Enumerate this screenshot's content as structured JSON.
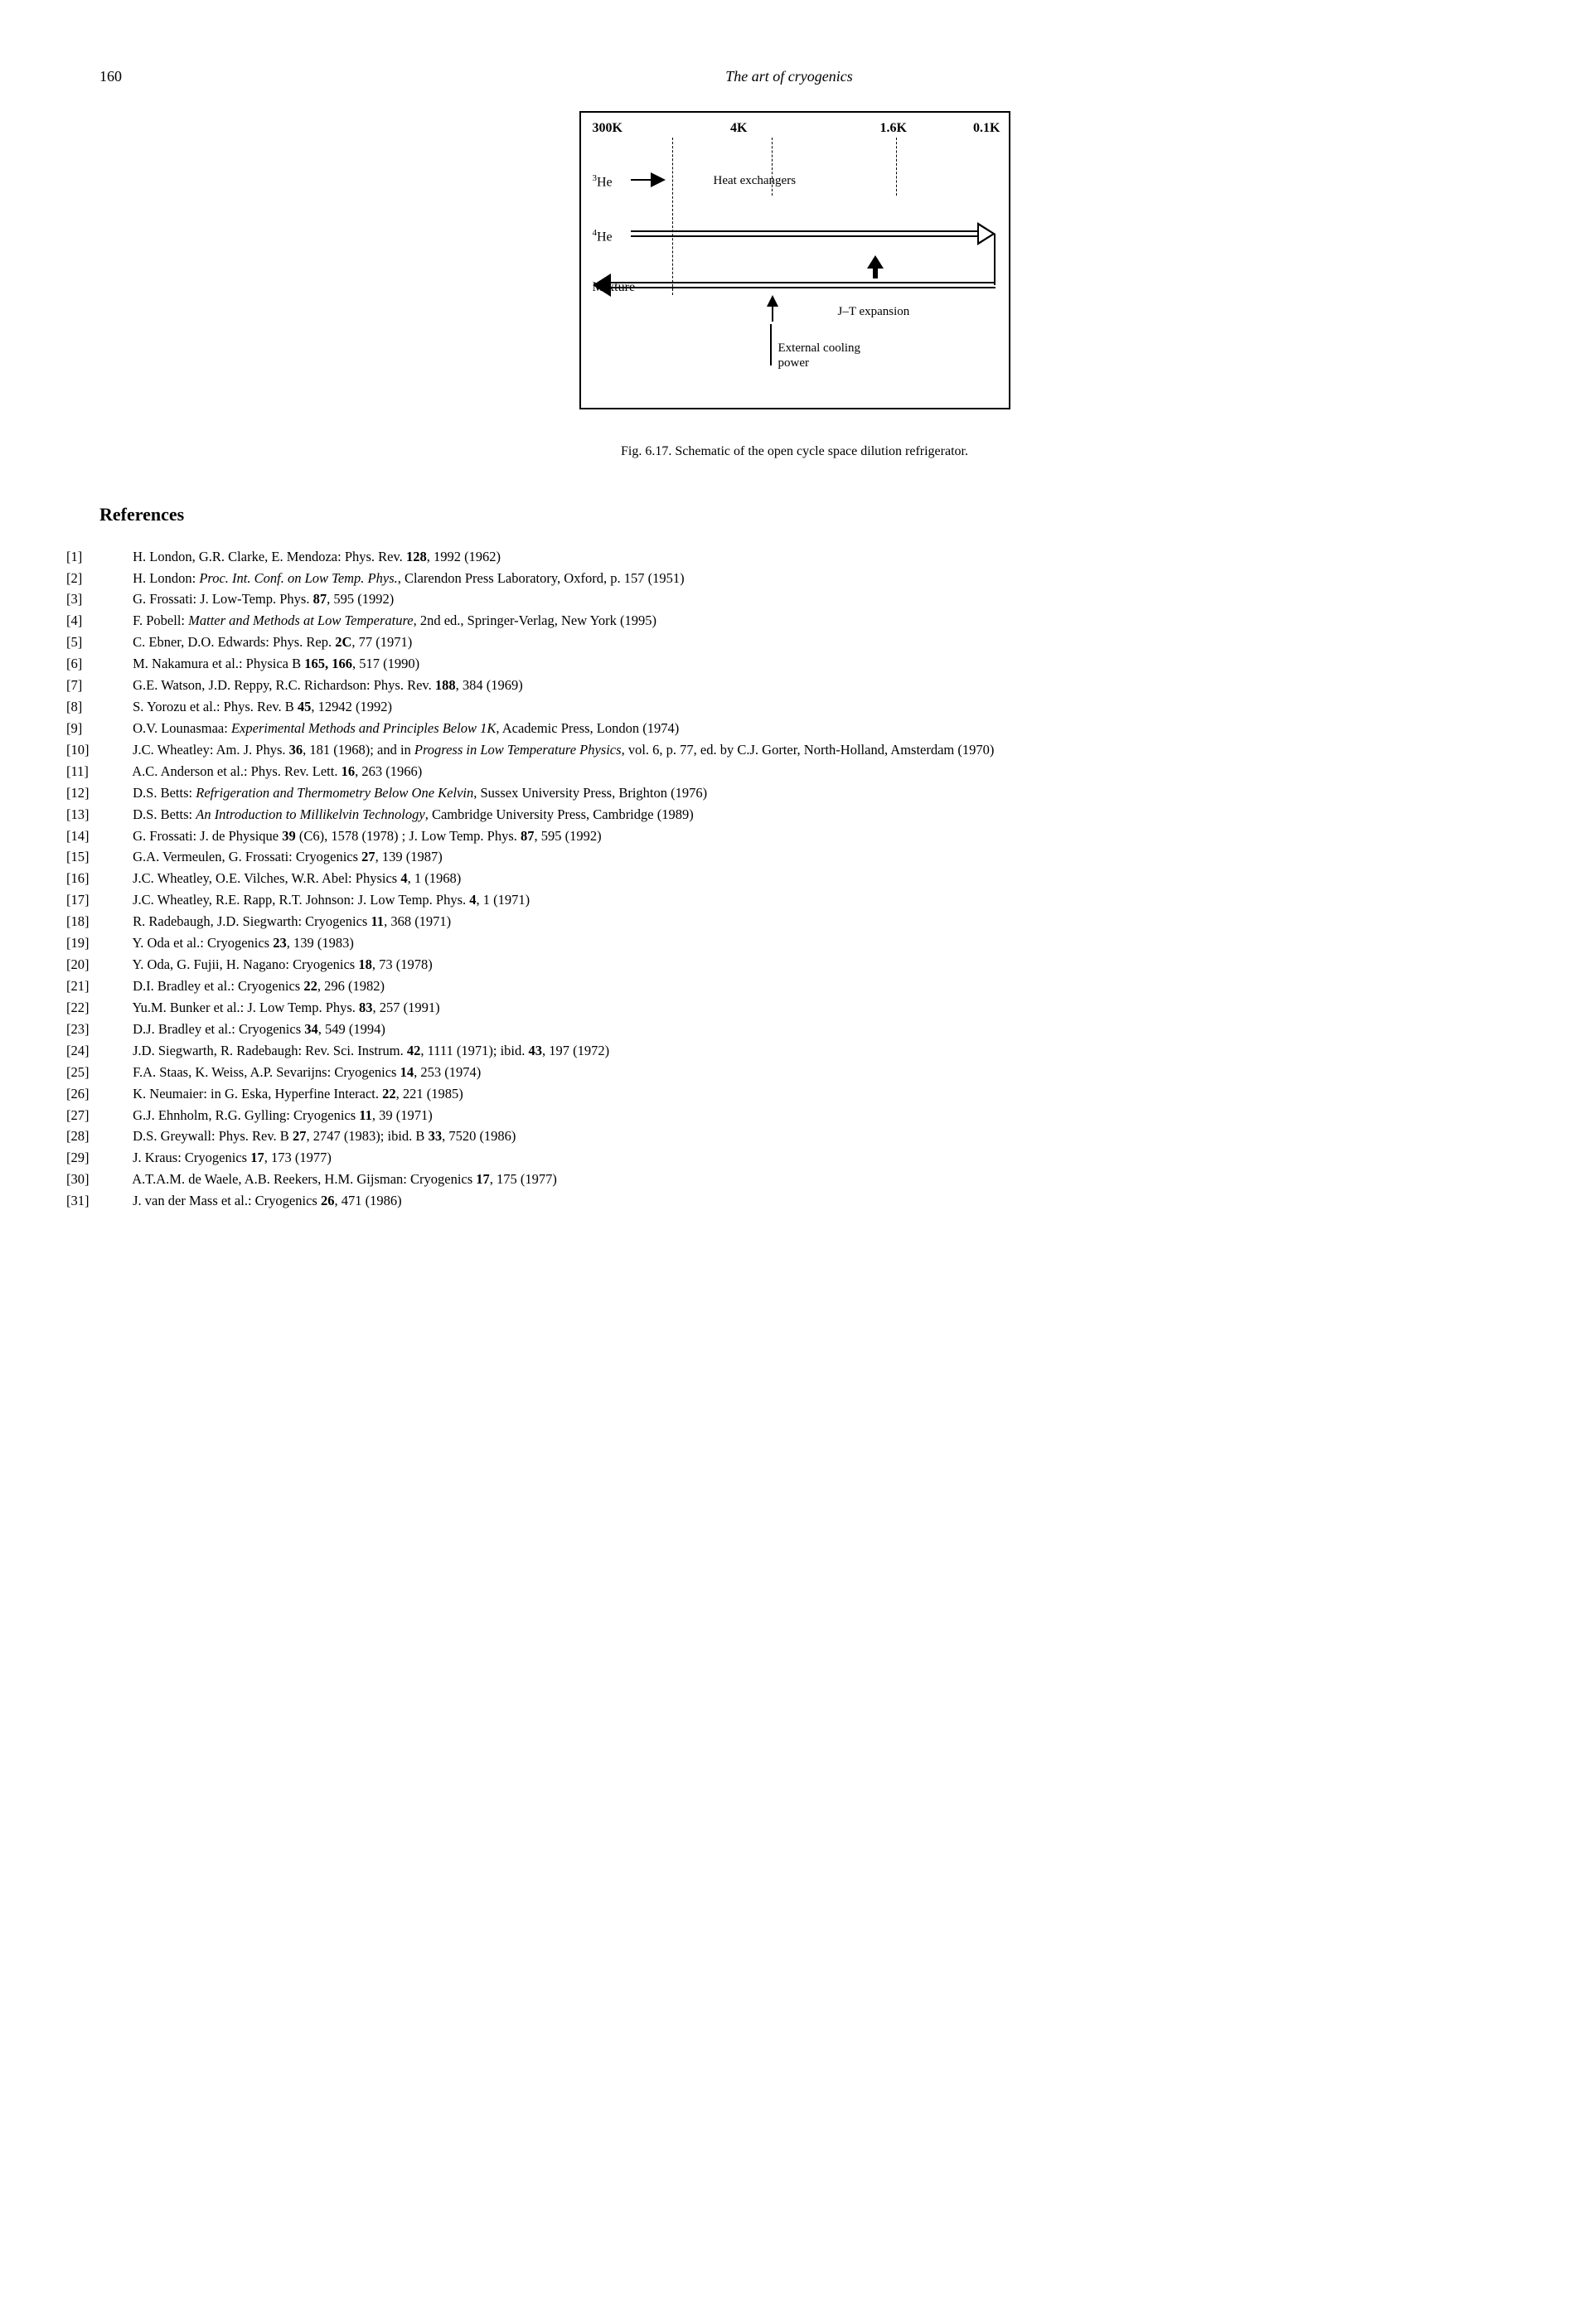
{
  "page_number": "160",
  "running_title": "The art of cryogenics",
  "figure": {
    "temps": [
      "300K",
      "4K",
      "1.6K",
      "0.1K"
    ],
    "rows": [
      "³He",
      "⁴He",
      "Mixture"
    ],
    "labels": {
      "heat_exchangers": "Heat exchangers",
      "jt_expansion": "J–T expansion",
      "external_cooling": "External cooling power"
    },
    "caption": "Fig. 6.17.  Schematic of the open cycle space dilution refrigerator."
  },
  "references_heading": "References",
  "references": [
    {
      "num": "[1]",
      "text": "H. London, G.R. Clarke, E. Mendoza: Phys. Rev. <b>128</b>, 1992 (1962)"
    },
    {
      "num": "[2]",
      "text": "H. London: <i>Proc. Int. Conf. on Low Temp. Phys.</i>, Clarendon Press Laboratory, Oxford, p. 157 (1951)"
    },
    {
      "num": "[3]",
      "text": "G. Frossati: J. Low-Temp. Phys. <b>87</b>, 595 (1992)"
    },
    {
      "num": "[4]",
      "text": "F. Pobell: <i>Matter and Methods at Low Temperature</i>, 2nd ed., Springer-Verlag, New York (1995)"
    },
    {
      "num": "[5]",
      "text": "C. Ebner, D.O. Edwards: Phys. Rep. <b>2C</b>, 77 (1971)"
    },
    {
      "num": "[6]",
      "text": "M. Nakamura et al.: Physica B <b>165, 166</b>, 517 (1990)"
    },
    {
      "num": "[7]",
      "text": "G.E. Watson, J.D. Reppy, R.C. Richardson: Phys. Rev. <b>188</b>, 384 (1969)"
    },
    {
      "num": "[8]",
      "text": "S. Yorozu et al.: Phys. Rev. B <b>45</b>, 12942 (1992)"
    },
    {
      "num": "[9]",
      "text": "O.V. Lounasmaa: <i>Experimental Methods and Principles Below 1K</i>, Academic Press, London (1974)"
    },
    {
      "num": "[10]",
      "text": "J.C. Wheatley: Am. J. Phys. <b>36</b>, 181 (1968); and in <i>Progress in Low Temperature Physics</i>, vol. 6, p. 77, ed. by C.J. Gorter, North-Holland, Amsterdam (1970)"
    },
    {
      "num": "[11]",
      "text": "A.C. Anderson et al.: Phys. Rev. Lett. <b>16</b>, 263 (1966)"
    },
    {
      "num": "[12]",
      "text": "D.S. Betts: <i>Refrigeration and Thermometry Below One Kelvin</i>, Sussex University Press, Brighton (1976)"
    },
    {
      "num": "[13]",
      "text": "D.S. Betts: <i>An Introduction to Millikelvin Technology</i>, Cambridge University Press, Cambridge (1989)"
    },
    {
      "num": "[14]",
      "text": "G. Frossati: J. de Physique <b>39</b> (C6), 1578 (1978) ; J. Low Temp. Phys. <b>87</b>, 595 (1992)"
    },
    {
      "num": "[15]",
      "text": "G.A. Vermeulen, G. Frossati: Cryogenics <b>27</b>, 139 (1987)"
    },
    {
      "num": "[16]",
      "text": "J.C. Wheatley, O.E. Vilches, W.R. Abel: Physics <b>4</b>, 1 (1968)"
    },
    {
      "num": "[17]",
      "text": "J.C. Wheatley, R.E. Rapp, R.T. Johnson: J. Low Temp. Phys. <b>4</b>, 1 (1971)"
    },
    {
      "num": "[18]",
      "text": "R. Radebaugh, J.D. Siegwarth: Cryogenics <b>11</b>, 368 (1971)"
    },
    {
      "num": "[19]",
      "text": "Y. Oda et al.: Cryogenics <b>23</b>, 139 (1983)"
    },
    {
      "num": "[20]",
      "text": "Y. Oda, G. Fujii, H. Nagano: Cryogenics <b>18</b>, 73 (1978)"
    },
    {
      "num": "[21]",
      "text": "D.I. Bradley et al.: Cryogenics <b>22</b>, 296 (1982)"
    },
    {
      "num": "[22]",
      "text": "Yu.M. Bunker et al.: J. Low Temp. Phys. <b>83</b>, 257 (1991)"
    },
    {
      "num": "[23]",
      "text": "D.J. Bradley et al.: Cryogenics <b>34</b>, 549 (1994)"
    },
    {
      "num": "[24]",
      "text": "J.D. Siegwarth, R. Radebaugh: Rev. Sci. Instrum. <b>42</b>, 1111 (1971); ibid. <b>43</b>, 197 (1972)"
    },
    {
      "num": "[25]",
      "text": "F.A. Staas, K. Weiss, A.P. Sevarijns: Cryogenics <b>14</b>, 253 (1974)"
    },
    {
      "num": "[26]",
      "text": "K. Neumaier: in G. Eska, Hyperfine Interact. <b>22</b>, 221 (1985)"
    },
    {
      "num": "[27]",
      "text": "G.J. Ehnholm, R.G. Gylling: Cryogenics <b>11</b>, 39 (1971)"
    },
    {
      "num": "[28]",
      "text": "D.S. Greywall: Phys. Rev. B <b>27</b>, 2747 (1983); ibid. B <b>33</b>, 7520 (1986)"
    },
    {
      "num": "[29]",
      "text": "J. Kraus: Cryogenics <b>17</b>, 173 (1977)"
    },
    {
      "num": "[30]",
      "text": "A.T.A.M. de Waele, A.B. Reekers, H.M. Gijsman: Cryogenics <b>17</b>, 175 (1977)"
    },
    {
      "num": "[31]",
      "text": "J. van der Mass et al.: Cryogenics <b>26</b>, 471 (1986)"
    }
  ]
}
